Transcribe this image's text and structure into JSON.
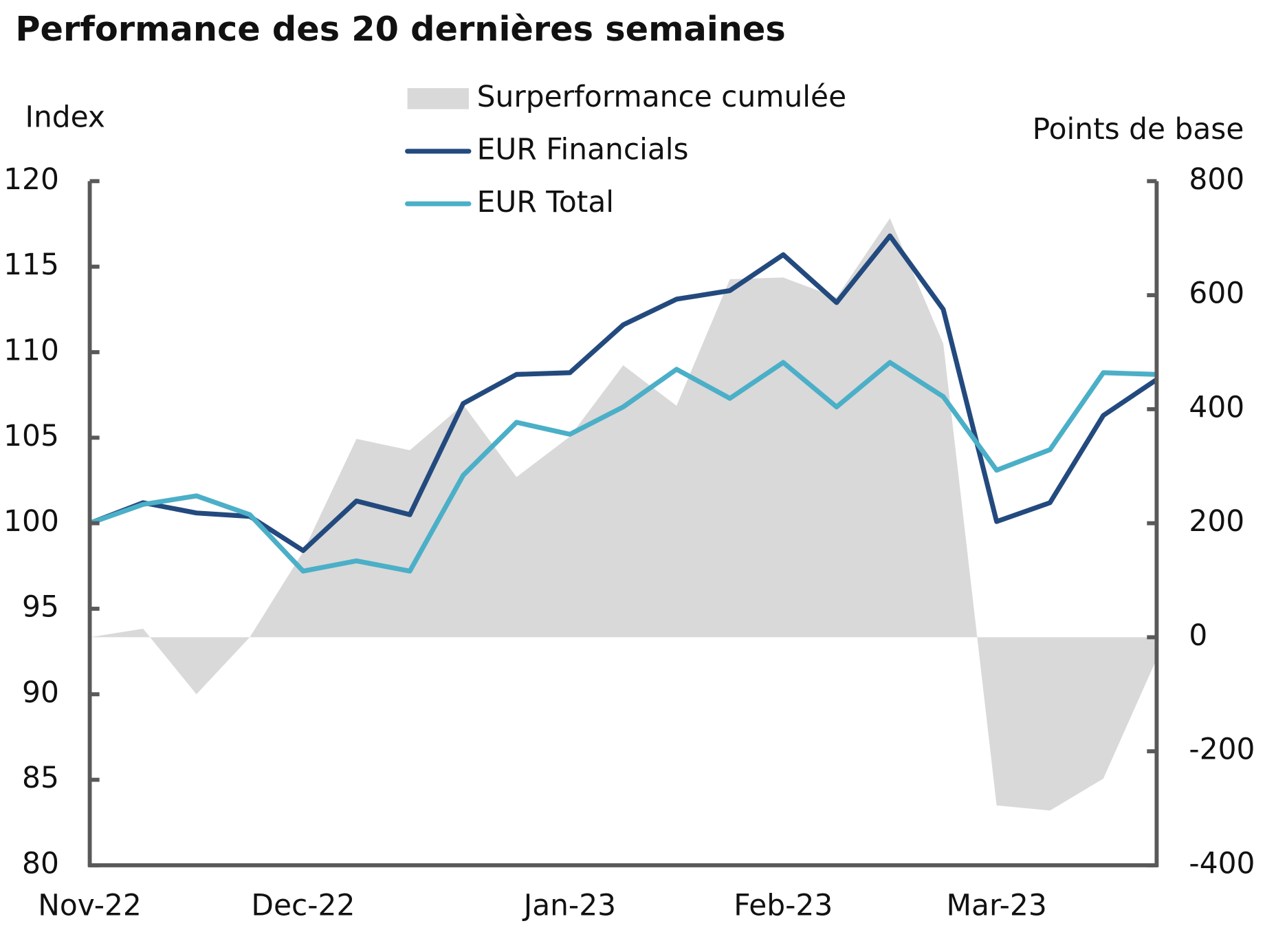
{
  "chart_data": {
    "type": "combo",
    "title": "Performance des 20 dernières semaines",
    "y_label": "Index",
    "y2_label": "Points de base",
    "categories": [
      "Nov-22",
      null,
      null,
      null,
      "Dec-22",
      null,
      null,
      null,
      null,
      "Jan-23",
      null,
      null,
      null,
      "Feb-23",
      null,
      null,
      null,
      "Mar-23",
      null,
      null,
      null
    ],
    "ylim": [
      80,
      120
    ],
    "yticks": [
      80,
      85,
      90,
      95,
      100,
      105,
      110,
      115,
      120
    ],
    "y2lim": [
      -400,
      800
    ],
    "y2ticks": [
      -400,
      -200,
      0,
      200,
      400,
      600,
      800
    ],
    "series": [
      {
        "name": "Surperformance cumulée",
        "type": "area",
        "axis": "y2",
        "color": "#d9d9d9",
        "values": [
          0,
          15,
          -100,
          0,
          150,
          348,
          328,
          408,
          281,
          352,
          477,
          406,
          628,
          631,
          596,
          735,
          515,
          -295,
          -304,
          -248,
          -38
        ]
      },
      {
        "name": "EUR Financials",
        "type": "line",
        "color": "#234a7e",
        "values": [
          100.0,
          101.2,
          100.6,
          100.4,
          98.4,
          101.3,
          100.5,
          107.0,
          108.7,
          108.8,
          111.6,
          113.1,
          113.6,
          115.7,
          112.9,
          116.8,
          112.5,
          100.1,
          101.2,
          106.3,
          108.4
        ]
      },
      {
        "name": "EUR Total",
        "type": "line",
        "color": "#4bafc8",
        "values": [
          100.0,
          101.1,
          101.6,
          100.5,
          97.2,
          97.8,
          97.2,
          102.8,
          105.9,
          105.2,
          106.8,
          109.0,
          107.3,
          109.4,
          106.8,
          109.4,
          107.4,
          103.1,
          104.3,
          108.8,
          108.7
        ]
      }
    ]
  }
}
